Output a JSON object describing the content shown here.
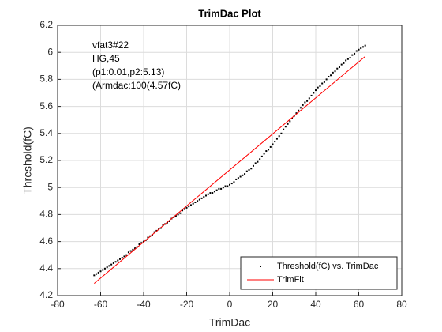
{
  "chart_data": {
    "type": "scatter",
    "title": "TrimDac Plot",
    "xlabel": "TrimDac",
    "ylabel": "Threshold(fC)",
    "annotations": [
      "vfat3#22",
      "HG,45",
      "(p1:0.01,p2:5.13)",
      "(Armdac:100(4.57fC)"
    ],
    "xlim": [
      -80,
      80
    ],
    "ylim": [
      4.2,
      6.2
    ],
    "xticks": [
      -80,
      -60,
      -40,
      -20,
      0,
      20,
      40,
      60,
      80
    ],
    "yticks": [
      4.2,
      4.4,
      4.6,
      4.8,
      5,
      5.2,
      5.4,
      5.6,
      5.8,
      6,
      6.2
    ],
    "grid": true,
    "legend": "lower right",
    "series": [
      {
        "name": "Threshold(fC) vs. TrimDac",
        "color": "#000000",
        "kind": "points",
        "x": [
          -63,
          -62,
          -61,
          -60,
          -59,
          -58,
          -57,
          -56,
          -55,
          -54,
          -53,
          -52,
          -51,
          -50,
          -49,
          -48,
          -47,
          -46,
          -45,
          -44,
          -43,
          -42,
          -41,
          -40,
          -39,
          -38,
          -37,
          -36,
          -35,
          -34,
          -33,
          -32,
          -31,
          -30,
          -29,
          -28,
          -27,
          -26,
          -25,
          -24,
          -23,
          -22,
          -21,
          -20,
          -19,
          -18,
          -17,
          -16,
          -15,
          -14,
          -13,
          -12,
          -11,
          -10,
          -9,
          -8,
          -7,
          -6,
          -5,
          -4,
          -3,
          -2,
          -1,
          0,
          1,
          2,
          3,
          4,
          5,
          6,
          7,
          8,
          9,
          10,
          11,
          12,
          13,
          14,
          15,
          16,
          17,
          18,
          19,
          20,
          21,
          22,
          23,
          24,
          25,
          26,
          27,
          28,
          29,
          30,
          31,
          32,
          33,
          34,
          35,
          36,
          37,
          38,
          39,
          40,
          41,
          42,
          43,
          44,
          45,
          46,
          47,
          48,
          49,
          50,
          51,
          52,
          53,
          54,
          55,
          56,
          57,
          58,
          59,
          60,
          61,
          62,
          63
        ],
        "values": [
          4.35,
          4.36,
          4.37,
          4.38,
          4.39,
          4.4,
          4.41,
          4.42,
          4.43,
          4.44,
          4.45,
          4.46,
          4.47,
          4.48,
          4.49,
          4.5,
          4.52,
          4.53,
          4.54,
          4.55,
          4.56,
          4.58,
          4.59,
          4.6,
          4.61,
          4.63,
          4.64,
          4.65,
          4.67,
          4.68,
          4.69,
          4.7,
          4.72,
          4.73,
          4.74,
          4.75,
          4.77,
          4.78,
          4.79,
          4.8,
          4.81,
          4.83,
          4.84,
          4.85,
          4.86,
          4.87,
          4.88,
          4.89,
          4.9,
          4.91,
          4.92,
          4.93,
          4.94,
          4.95,
          4.96,
          4.96,
          4.97,
          4.98,
          4.99,
          4.99,
          5.0,
          5.01,
          5.01,
          5.02,
          5.03,
          5.04,
          5.06,
          5.07,
          5.08,
          5.09,
          5.1,
          5.12,
          5.13,
          5.14,
          5.16,
          5.18,
          5.19,
          5.21,
          5.23,
          5.25,
          5.27,
          5.28,
          5.3,
          5.32,
          5.34,
          5.36,
          5.38,
          5.4,
          5.43,
          5.45,
          5.47,
          5.49,
          5.51,
          5.53,
          5.55,
          5.57,
          5.59,
          5.61,
          5.63,
          5.64,
          5.66,
          5.68,
          5.7,
          5.72,
          5.74,
          5.75,
          5.77,
          5.78,
          5.8,
          5.82,
          5.83,
          5.85,
          5.86,
          5.88,
          5.89,
          5.91,
          5.92,
          5.94,
          5.95,
          5.96,
          5.98,
          5.99,
          6.01,
          6.02,
          6.03,
          6.04,
          6.05
        ]
      },
      {
        "name": "TrimFit",
        "color": "#ff0000",
        "kind": "line",
        "x": [
          -63,
          63
        ],
        "values": [
          4.29,
          5.97
        ]
      }
    ]
  }
}
